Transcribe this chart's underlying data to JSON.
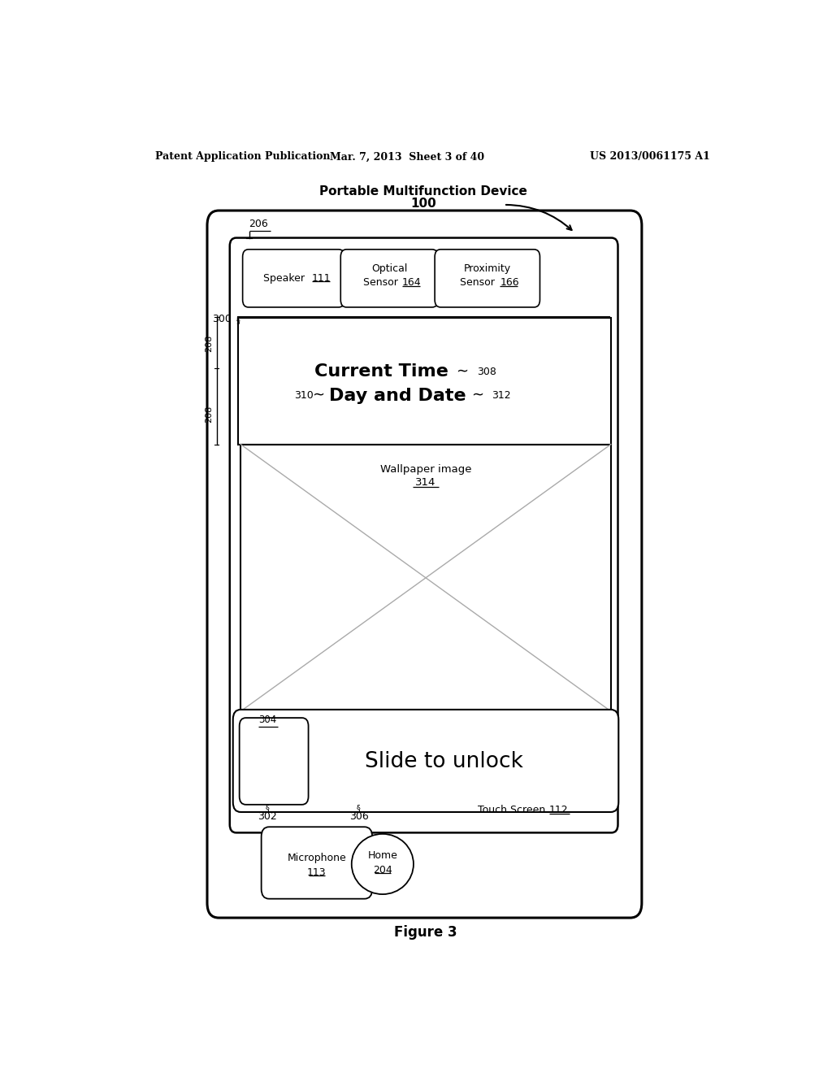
{
  "bg_color": "#ffffff",
  "header_left": "Patent Application Publication",
  "header_mid": "Mar. 7, 2013  Sheet 3 of 40",
  "header_right": "US 2013/0061175 A1",
  "figure_label": "Figure 3",
  "device_label": "Portable Multifunction Device",
  "device_num": "100"
}
